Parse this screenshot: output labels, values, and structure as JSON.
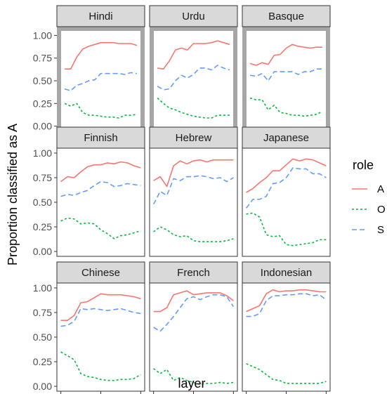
{
  "chart_data": {
    "type": "line",
    "xlabel": "layer",
    "ylabel": "Proportion classified as A",
    "xlim": [
      0,
      12
    ],
    "ylim": [
      0,
      1
    ],
    "xticks": [
      "0",
      "6",
      "12"
    ],
    "yticks": [
      "0.00",
      "0.25",
      "0.50",
      "0.75",
      "1.00"
    ],
    "grid": false,
    "facet_layout": "3x3",
    "legend": {
      "title": "role",
      "position": "right",
      "entries": [
        {
          "label": "A",
          "color": "#F8766D",
          "dash": "solid"
        },
        {
          "label": "O",
          "color": "#00BA38",
          "dash": "dotted"
        },
        {
          "label": "S",
          "color": "#619CFF",
          "dash": "dashed"
        }
      ]
    },
    "x": [
      0,
      1,
      2,
      3,
      4,
      5,
      6,
      7,
      8,
      9,
      10,
      11,
      12
    ],
    "panels": [
      {
        "title": "Hindi",
        "highlighted": true,
        "series": [
          {
            "name": "A",
            "values": [
              0.63,
              0.63,
              0.76,
              0.85,
              0.88,
              0.9,
              0.92,
              0.92,
              0.92,
              0.91,
              0.91,
              0.91,
              0.89
            ]
          },
          {
            "name": "O",
            "values": [
              0.25,
              0.22,
              0.25,
              0.15,
              0.12,
              0.12,
              0.11,
              0.1,
              0.1,
              0.09,
              0.12,
              0.12,
              0.13
            ]
          },
          {
            "name": "S",
            "values": [
              0.41,
              0.39,
              0.45,
              0.47,
              0.5,
              0.51,
              0.58,
              0.58,
              0.58,
              0.58,
              0.57,
              0.59,
              0.58
            ]
          }
        ]
      },
      {
        "title": "Urdu",
        "highlighted": true,
        "series": [
          {
            "name": "A",
            "values": [
              0.64,
              0.63,
              0.72,
              0.84,
              0.86,
              0.84,
              0.91,
              0.91,
              0.91,
              0.92,
              0.94,
              0.92,
              0.9
            ]
          },
          {
            "name": "O",
            "values": [
              0.31,
              0.25,
              0.2,
              0.18,
              0.15,
              0.13,
              0.11,
              0.1,
              0.09,
              0.09,
              0.12,
              0.12,
              0.12
            ]
          },
          {
            "name": "S",
            "values": [
              0.44,
              0.4,
              0.41,
              0.5,
              0.56,
              0.53,
              0.57,
              0.64,
              0.64,
              0.62,
              0.67,
              0.64,
              0.62
            ]
          }
        ]
      },
      {
        "title": "Basque",
        "highlighted": true,
        "series": [
          {
            "name": "A",
            "values": [
              0.69,
              0.67,
              0.7,
              0.68,
              0.78,
              0.79,
              0.86,
              0.9,
              0.88,
              0.87,
              0.86,
              0.87,
              0.87
            ]
          },
          {
            "name": "O",
            "values": [
              0.31,
              0.29,
              0.29,
              0.18,
              0.23,
              0.15,
              0.14,
              0.12,
              0.12,
              0.11,
              0.12,
              0.13,
              0.16
            ]
          },
          {
            "name": "S",
            "values": [
              0.56,
              0.55,
              0.58,
              0.5,
              0.6,
              0.6,
              0.6,
              0.6,
              0.57,
              0.6,
              0.6,
              0.63,
              0.63
            ]
          }
        ]
      },
      {
        "title": "Finnish",
        "highlighted": false,
        "series": [
          {
            "name": "A",
            "values": [
              0.71,
              0.76,
              0.75,
              0.81,
              0.86,
              0.88,
              0.88,
              0.9,
              0.89,
              0.91,
              0.9,
              0.87,
              0.85
            ]
          },
          {
            "name": "O",
            "values": [
              0.31,
              0.34,
              0.33,
              0.28,
              0.29,
              0.28,
              0.22,
              0.18,
              0.13,
              0.16,
              0.17,
              0.19,
              0.21
            ]
          },
          {
            "name": "S",
            "values": [
              0.56,
              0.58,
              0.57,
              0.6,
              0.62,
              0.67,
              0.71,
              0.7,
              0.66,
              0.67,
              0.69,
              0.68,
              0.67
            ]
          }
        ]
      },
      {
        "title": "Hebrew",
        "highlighted": false,
        "series": [
          {
            "name": "A",
            "values": [
              0.72,
              0.76,
              0.66,
              0.87,
              0.92,
              0.89,
              0.92,
              0.93,
              0.91,
              0.93,
              0.93,
              0.93,
              0.93
            ]
          },
          {
            "name": "O",
            "values": [
              0.2,
              0.25,
              0.22,
              0.17,
              0.15,
              0.16,
              0.11,
              0.1,
              0.1,
              0.1,
              0.1,
              0.11,
              0.13
            ]
          },
          {
            "name": "S",
            "values": [
              0.48,
              0.61,
              0.57,
              0.74,
              0.72,
              0.76,
              0.76,
              0.77,
              0.76,
              0.74,
              0.75,
              0.71,
              0.75
            ]
          }
        ]
      },
      {
        "title": "Japanese",
        "highlighted": false,
        "series": [
          {
            "name": "A",
            "values": [
              0.6,
              0.64,
              0.7,
              0.75,
              0.82,
              0.82,
              0.88,
              0.94,
              0.92,
              0.94,
              0.93,
              0.9,
              0.87
            ]
          },
          {
            "name": "O",
            "values": [
              0.38,
              0.39,
              0.35,
              0.17,
              0.15,
              0.16,
              0.07,
              0.06,
              0.07,
              0.08,
              0.09,
              0.12,
              0.12
            ]
          },
          {
            "name": "S",
            "values": [
              0.44,
              0.53,
              0.53,
              0.56,
              0.69,
              0.7,
              0.75,
              0.85,
              0.84,
              0.84,
              0.79,
              0.79,
              0.75
            ]
          }
        ]
      },
      {
        "title": "Chinese",
        "highlighted": false,
        "series": [
          {
            "name": "A",
            "values": [
              0.67,
              0.67,
              0.72,
              0.85,
              0.86,
              0.9,
              0.94,
              0.93,
              0.93,
              0.93,
              0.92,
              0.91,
              0.89
            ]
          },
          {
            "name": "O",
            "values": [
              0.35,
              0.31,
              0.27,
              0.13,
              0.1,
              0.09,
              0.07,
              0.06,
              0.06,
              0.07,
              0.07,
              0.08,
              0.12
            ]
          },
          {
            "name": "S",
            "values": [
              0.61,
              0.62,
              0.66,
              0.79,
              0.78,
              0.79,
              0.78,
              0.77,
              0.78,
              0.79,
              0.77,
              0.75,
              0.74
            ]
          }
        ]
      },
      {
        "title": "French",
        "highlighted": false,
        "series": [
          {
            "name": "A",
            "values": [
              0.76,
              0.76,
              0.8,
              0.93,
              0.95,
              0.97,
              0.93,
              0.94,
              0.95,
              0.95,
              0.95,
              0.92,
              0.87
            ]
          },
          {
            "name": "O",
            "values": [
              0.18,
              0.13,
              0.17,
              0.06,
              0.09,
              0.06,
              0.04,
              0.02,
              0.03,
              0.03,
              0.04,
              0.03,
              0.04
            ]
          },
          {
            "name": "S",
            "values": [
              0.6,
              0.56,
              0.63,
              0.71,
              0.8,
              0.89,
              0.91,
              0.88,
              0.91,
              0.93,
              0.93,
              0.91,
              0.81
            ]
          }
        ]
      },
      {
        "title": "Indonesian",
        "highlighted": false,
        "series": [
          {
            "name": "A",
            "values": [
              0.76,
              0.79,
              0.82,
              0.94,
              0.98,
              0.96,
              0.97,
              0.97,
              0.98,
              0.98,
              0.97,
              0.96,
              0.96
            ]
          },
          {
            "name": "O",
            "values": [
              0.23,
              0.2,
              0.17,
              0.12,
              0.07,
              0.06,
              0.03,
              0.03,
              0.03,
              0.03,
              0.03,
              0.03,
              0.05
            ]
          },
          {
            "name": "S",
            "values": [
              0.71,
              0.71,
              0.74,
              0.87,
              0.92,
              0.92,
              0.93,
              0.93,
              0.94,
              0.94,
              0.92,
              0.93,
              0.88
            ]
          }
        ]
      }
    ]
  }
}
